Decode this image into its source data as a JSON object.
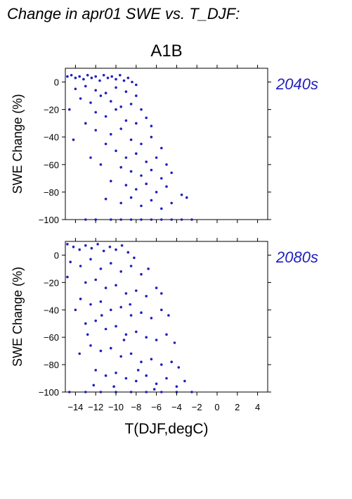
{
  "page_title": "Change in apr01 SWE vs. T_DJF:",
  "scenario": "A1B",
  "colors": {
    "points": "#1f1fbf",
    "period_label": "#1f1fbf",
    "axes": "#000000"
  },
  "chart_data": [
    {
      "type": "scatter",
      "period_label": "2040s",
      "xlabel": "T(DJF,degC)",
      "ylabel": "SWE Change (%)",
      "xlim": [
        -15,
        5
      ],
      "ylim": [
        -100,
        10
      ],
      "x_ticks": [
        -14,
        -12,
        -10,
        -8,
        -6,
        -4,
        -2,
        0,
        2,
        4
      ],
      "y_ticks": [
        0,
        -20,
        -40,
        -60,
        -80,
        -100
      ],
      "y_tick_labels": [
        "0",
        "−20",
        "−40",
        "−60",
        "−80",
        "−100"
      ],
      "grid": false,
      "points": [
        [
          -14.8,
          4
        ],
        [
          -14.4,
          5
        ],
        [
          -14.0,
          3
        ],
        [
          -13.6,
          4
        ],
        [
          -13.2,
          2
        ],
        [
          -12.8,
          5
        ],
        [
          -12.4,
          3
        ],
        [
          -12.0,
          4
        ],
        [
          -11.6,
          1
        ],
        [
          -11.2,
          5
        ],
        [
          -10.8,
          3
        ],
        [
          -10.4,
          4
        ],
        [
          -10.0,
          2
        ],
        [
          -9.6,
          5
        ],
        [
          -9.2,
          1
        ],
        [
          -8.8,
          3
        ],
        [
          -8.4,
          0
        ],
        [
          -8.0,
          -2
        ],
        [
          -14.0,
          -5
        ],
        [
          -13.0,
          -3
        ],
        [
          -12.0,
          -6
        ],
        [
          -11.0,
          -8
        ],
        [
          -10.0,
          -4
        ],
        [
          -9.0,
          -7
        ],
        [
          -8.0,
          -10
        ],
        [
          -13.5,
          -12
        ],
        [
          -12.5,
          -15
        ],
        [
          -11.5,
          -10
        ],
        [
          -10.5,
          -14
        ],
        [
          -9.5,
          -18
        ],
        [
          -8.5,
          -16
        ],
        [
          -7.5,
          -20
        ],
        [
          -14.6,
          -20
        ],
        [
          -12.0,
          -22
        ],
        [
          -11.0,
          -25
        ],
        [
          -10.0,
          -20
        ],
        [
          -9.0,
          -28
        ],
        [
          -8.0,
          -30
        ],
        [
          -7.0,
          -26
        ],
        [
          -6.5,
          -32
        ],
        [
          -13.0,
          -30
        ],
        [
          -12.0,
          -35
        ],
        [
          -10.5,
          -38
        ],
        [
          -9.5,
          -34
        ],
        [
          -8.5,
          -42
        ],
        [
          -7.5,
          -45
        ],
        [
          -6.5,
          -40
        ],
        [
          -5.5,
          -48
        ],
        [
          -14.2,
          -42
        ],
        [
          -11.0,
          -45
        ],
        [
          -10.0,
          -50
        ],
        [
          -9.0,
          -55
        ],
        [
          -8.0,
          -52
        ],
        [
          -7.0,
          -58
        ],
        [
          -6.0,
          -55
        ],
        [
          -5.0,
          -60
        ],
        [
          -12.5,
          -55
        ],
        [
          -11.5,
          -60
        ],
        [
          -9.5,
          -62
        ],
        [
          -8.5,
          -65
        ],
        [
          -7.5,
          -68
        ],
        [
          -6.5,
          -64
        ],
        [
          -5.5,
          -70
        ],
        [
          -4.5,
          -66
        ],
        [
          -10.5,
          -72
        ],
        [
          -9.0,
          -75
        ],
        [
          -8.0,
          -78
        ],
        [
          -7.0,
          -74
        ],
        [
          -6.0,
          -80
        ],
        [
          -5.0,
          -76
        ],
        [
          -3.5,
          -82
        ],
        [
          -11.0,
          -85
        ],
        [
          -9.5,
          -88
        ],
        [
          -8.5,
          -84
        ],
        [
          -7.5,
          -90
        ],
        [
          -6.5,
          -86
        ],
        [
          -5.5,
          -92
        ],
        [
          -4.5,
          -88
        ],
        [
          -3.0,
          -84
        ],
        [
          -12.0,
          -100
        ],
        [
          -10.5,
          -100
        ],
        [
          -9.5,
          -100
        ],
        [
          -8.5,
          -100
        ],
        [
          -7.5,
          -100
        ],
        [
          -6.5,
          -100
        ],
        [
          -5.5,
          -100
        ],
        [
          -4.5,
          -100
        ],
        [
          -3.5,
          -100
        ],
        [
          -2.5,
          -100
        ],
        [
          -13.0,
          -100
        ]
      ]
    },
    {
      "type": "scatter",
      "period_label": "2080s",
      "xlabel": "T(DJF,degC)",
      "ylabel": "SWE Change (%)",
      "xlim": [
        -15,
        5
      ],
      "ylim": [
        -100,
        10
      ],
      "x_ticks": [
        -14,
        -12,
        -10,
        -8,
        -6,
        -4,
        -2,
        0,
        2,
        4
      ],
      "x_tick_labels": [
        "−14",
        "−12",
        "−10",
        "−8",
        "−6",
        "−4",
        "−2",
        "0",
        "2",
        "4"
      ],
      "y_ticks": [
        0,
        -20,
        -40,
        -60,
        -80,
        -100
      ],
      "y_tick_labels": [
        "0",
        "−20",
        "−40",
        "−60",
        "−80",
        "−100"
      ],
      "grid": false,
      "points": [
        [
          -14.8,
          8
        ],
        [
          -14.2,
          6
        ],
        [
          -13.6,
          4
        ],
        [
          -13.0,
          7
        ],
        [
          -12.4,
          5
        ],
        [
          -11.8,
          8
        ],
        [
          -11.2,
          3
        ],
        [
          -10.6,
          6
        ],
        [
          -10.0,
          4
        ],
        [
          -9.4,
          7
        ],
        [
          -8.8,
          2
        ],
        [
          -8.2,
          -2
        ],
        [
          -14.5,
          -5
        ],
        [
          -13.5,
          -8
        ],
        [
          -12.5,
          -3
        ],
        [
          -11.5,
          -10
        ],
        [
          -10.5,
          -6
        ],
        [
          -9.5,
          -12
        ],
        [
          -8.5,
          -8
        ],
        [
          -7.5,
          -14
        ],
        [
          -6.8,
          -10
        ],
        [
          -14.8,
          -16
        ],
        [
          -13.0,
          -20
        ],
        [
          -12.0,
          -18
        ],
        [
          -11.0,
          -24
        ],
        [
          -10.0,
          -22
        ],
        [
          -9.0,
          -28
        ],
        [
          -8.0,
          -26
        ],
        [
          -7.0,
          -30
        ],
        [
          -6.0,
          -24
        ],
        [
          -5.5,
          -28
        ],
        [
          -13.5,
          -32
        ],
        [
          -12.5,
          -36
        ],
        [
          -11.5,
          -34
        ],
        [
          -10.5,
          -40
        ],
        [
          -9.5,
          -38
        ],
        [
          -8.5,
          -44
        ],
        [
          -7.5,
          -42
        ],
        [
          -6.5,
          -46
        ],
        [
          -5.5,
          -40
        ],
        [
          -4.8,
          -44
        ],
        [
          -13.0,
          -50
        ],
        [
          -12.0,
          -48
        ],
        [
          -11.0,
          -54
        ],
        [
          -10.0,
          -52
        ],
        [
          -9.0,
          -58
        ],
        [
          -8.0,
          -56
        ],
        [
          -7.0,
          -60
        ],
        [
          -6.0,
          -62
        ],
        [
          -5.0,
          -58
        ],
        [
          -4.2,
          -64
        ],
        [
          -12.5,
          -66
        ],
        [
          -11.5,
          -70
        ],
        [
          -10.5,
          -68
        ],
        [
          -9.5,
          -74
        ],
        [
          -8.5,
          -72
        ],
        [
          -7.5,
          -78
        ],
        [
          -6.5,
          -76
        ],
        [
          -5.5,
          -80
        ],
        [
          -4.5,
          -78
        ],
        [
          -3.8,
          -82
        ],
        [
          -12.0,
          -84
        ],
        [
          -11.0,
          -88
        ],
        [
          -10.0,
          -86
        ],
        [
          -9.0,
          -90
        ],
        [
          -8.0,
          -92
        ],
        [
          -7.0,
          -88
        ],
        [
          -6.0,
          -94
        ],
        [
          -5.0,
          -90
        ],
        [
          -4.0,
          -96
        ],
        [
          -3.2,
          -92
        ],
        [
          -14.6,
          -100
        ],
        [
          -13.0,
          -100
        ],
        [
          -11.5,
          -100
        ],
        [
          -10.0,
          -100
        ],
        [
          -8.5,
          -100
        ],
        [
          -7.0,
          -100
        ],
        [
          -5.5,
          -100
        ],
        [
          -4.0,
          -100
        ],
        [
          -2.5,
          -100
        ],
        [
          -14.0,
          -40
        ],
        [
          -12.8,
          -58
        ],
        [
          -13.6,
          -72
        ],
        [
          -12.2,
          -95
        ],
        [
          -11.4,
          -44
        ],
        [
          -10.2,
          -96
        ],
        [
          -9.2,
          -62
        ],
        [
          -8.6,
          -36
        ],
        [
          -7.8,
          -84
        ],
        [
          -6.2,
          -98
        ]
      ]
    }
  ]
}
